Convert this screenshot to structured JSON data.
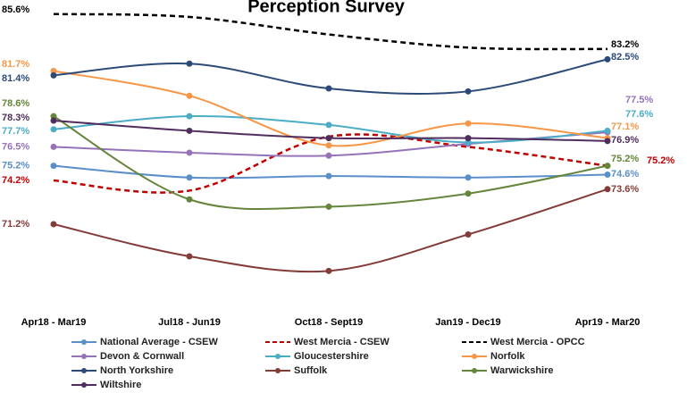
{
  "chart_data": {
    "type": "line",
    "title": "Perception Survey",
    "categories": [
      "Apr18 - Mar19",
      "Jul18 - Jun19",
      "Oct18 - Sept19",
      "Jan19 - Dec19",
      "Apr19 - Mar20"
    ],
    "ylim": [
      66,
      86.5
    ],
    "series": [
      {
        "name": "National Average - CSEW",
        "color": "#5b8fc9",
        "dashed": false,
        "values": [
          75.2,
          74.4,
          74.5,
          74.4,
          74.6
        ],
        "value_labels": [
          "75.2%",
          null,
          null,
          null,
          "74.6%"
        ]
      },
      {
        "name": "West Mercia - CSEW",
        "color": "#c00000",
        "dashed": true,
        "values": [
          74.2,
          73.5,
          77.2,
          76.5,
          75.2
        ],
        "value_labels": [
          "74.2%",
          null,
          null,
          null,
          "75.2%"
        ]
      },
      {
        "name": "West Mercia - OPCC",
        "color": "#000000",
        "dashed": true,
        "values": [
          85.6,
          85.4,
          84.2,
          83.3,
          83.2
        ],
        "value_labels": [
          "85.6%",
          null,
          null,
          null,
          "83.2%"
        ]
      },
      {
        "name": "Devon & Cornwall",
        "color": "#9673b9",
        "dashed": false,
        "values": [
          76.5,
          76.1,
          75.9,
          76.7,
          77.5
        ],
        "value_labels": [
          "76.5%",
          null,
          null,
          null,
          "77.5%"
        ]
      },
      {
        "name": "Gloucestershire",
        "color": "#4bacc6",
        "dashed": false,
        "values": [
          77.7,
          78.6,
          78.0,
          76.8,
          77.6
        ],
        "value_labels": [
          "77.7%",
          null,
          null,
          null,
          "77.6%"
        ]
      },
      {
        "name": "Norfolk",
        "color": "#f79646",
        "dashed": false,
        "values": [
          81.7,
          80.0,
          76.6,
          78.1,
          77.1
        ],
        "value_labels": [
          "81.7%",
          null,
          null,
          null,
          "77.1%"
        ]
      },
      {
        "name": "North Yorkshire",
        "color": "#2c4a78",
        "dashed": false,
        "values": [
          81.4,
          82.2,
          80.5,
          80.3,
          82.5
        ],
        "value_labels": [
          "81.4%",
          null,
          null,
          null,
          "82.5%"
        ]
      },
      {
        "name": "Suffolk",
        "color": "#843c39",
        "dashed": false,
        "values": [
          71.2,
          69.0,
          68.0,
          70.5,
          73.6
        ],
        "value_labels": [
          "71.2%",
          null,
          null,
          null,
          "73.6%"
        ]
      },
      {
        "name": "Warwickshire",
        "color": "#65853a",
        "dashed": false,
        "values": [
          78.6,
          72.9,
          72.4,
          73.3,
          75.2
        ],
        "value_labels": [
          "78.6%",
          null,
          null,
          null,
          "75.2%"
        ]
      },
      {
        "name": "Wiltshire",
        "color": "#4f2e5e",
        "dashed": false,
        "values": [
          78.3,
          77.6,
          77.1,
          77.1,
          76.9
        ],
        "value_labels": [
          "78.3%",
          null,
          null,
          null,
          "76.9%"
        ]
      }
    ]
  }
}
